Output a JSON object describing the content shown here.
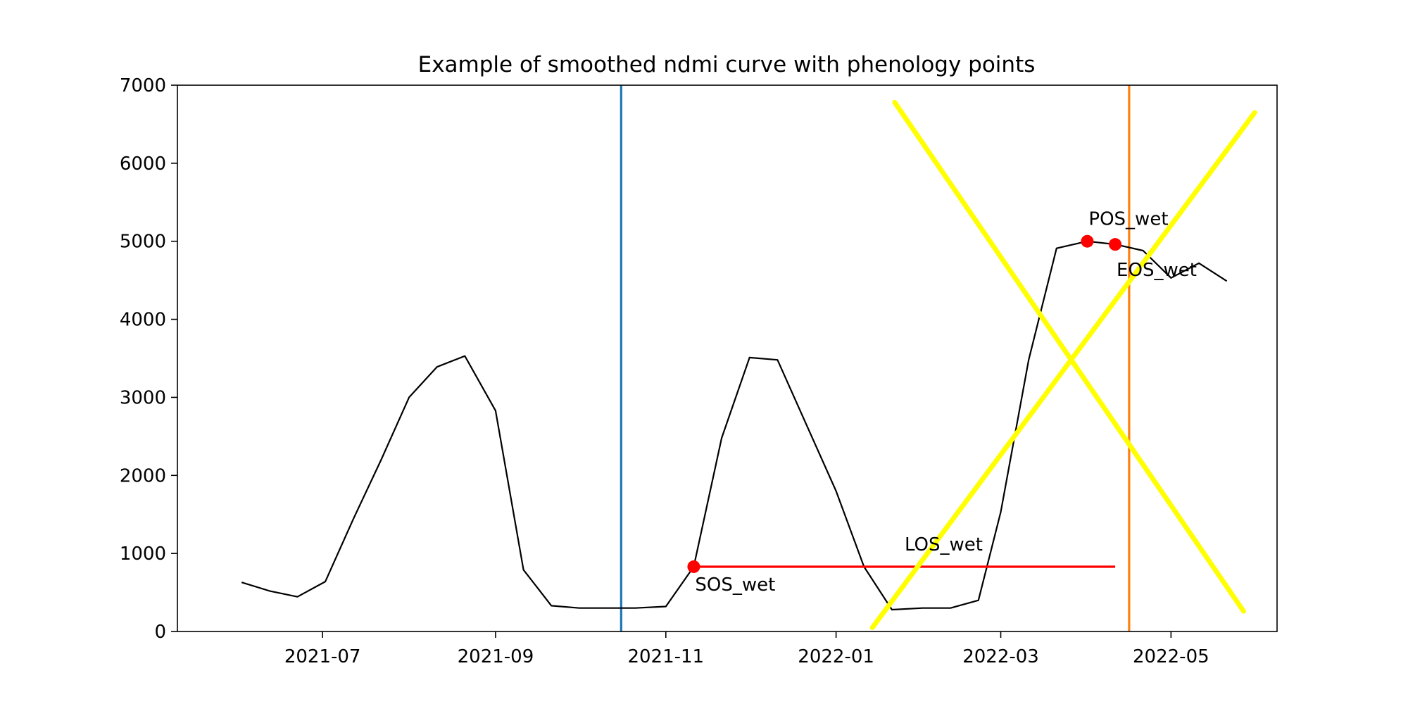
{
  "chart_data": {
    "type": "line",
    "title": "Example of smoothed ndmi curve with phenology points",
    "xlabel": "",
    "ylabel": "",
    "ylim": [
      0,
      7000
    ],
    "xlim": [
      "2021-05-10",
      "2022-06-08"
    ],
    "grid": false,
    "yticks": [
      0,
      1000,
      2000,
      3000,
      4000,
      5000,
      6000,
      7000
    ],
    "xticks": [
      {
        "date": "2021-07-01",
        "label": "2021-07"
      },
      {
        "date": "2021-09-01",
        "label": "2021-09"
      },
      {
        "date": "2021-11-01",
        "label": "2021-11"
      },
      {
        "date": "2022-01-01",
        "label": "2022-01"
      },
      {
        "date": "2022-03-01",
        "label": "2022-03"
      },
      {
        "date": "2022-05-01",
        "label": "2022-05"
      }
    ],
    "series": [
      {
        "color": "#000000",
        "points": [
          [
            "2021-06-02",
            630
          ],
          [
            "2021-06-12",
            520
          ],
          [
            "2021-06-22",
            445
          ],
          [
            "2021-07-02",
            640
          ],
          [
            "2021-07-12",
            1440
          ],
          [
            "2021-07-22",
            2200
          ],
          [
            "2021-08-01",
            3000
          ],
          [
            "2021-08-11",
            3390
          ],
          [
            "2021-08-21",
            3530
          ],
          [
            "2021-09-01",
            2830
          ],
          [
            "2021-09-11",
            790
          ],
          [
            "2021-09-21",
            330
          ],
          [
            "2021-10-01",
            300
          ],
          [
            "2021-10-11",
            300
          ],
          [
            "2021-10-21",
            300
          ],
          [
            "2021-11-01",
            320
          ],
          [
            "2021-11-11",
            830
          ],
          [
            "2021-11-21",
            2480
          ],
          [
            "2021-12-01",
            3510
          ],
          [
            "2021-12-11",
            3480
          ],
          [
            "2021-12-21",
            2680
          ],
          [
            "2022-01-01",
            1800
          ],
          [
            "2022-01-11",
            830
          ],
          [
            "2022-01-21",
            280
          ],
          [
            "2022-02-01",
            300
          ],
          [
            "2022-02-11",
            300
          ],
          [
            "2022-02-21",
            400
          ],
          [
            "2022-03-01",
            1530
          ],
          [
            "2022-03-11",
            3480
          ],
          [
            "2022-03-21",
            4910
          ],
          [
            "2022-04-01",
            5000
          ],
          [
            "2022-04-11",
            4960
          ],
          [
            "2022-04-21",
            4880
          ],
          [
            "2022-05-01",
            4530
          ],
          [
            "2022-05-11",
            4720
          ],
          [
            "2022-05-21",
            4490
          ]
        ]
      }
    ],
    "vlines": [
      {
        "date": "2021-10-16",
        "color": "#1f77b4"
      },
      {
        "date": "2022-04-16",
        "color": "#ff7f0e"
      }
    ],
    "phenology_points": [
      {
        "label": "SOS_wet",
        "date": "2021-11-11",
        "value": 830
      },
      {
        "label": "POS_wet",
        "date": "2022-04-01",
        "value": 5000
      },
      {
        "label": "EOS_wet",
        "date": "2022-04-11",
        "value": 4960
      }
    ],
    "los_segment": {
      "label": "LOS_wet",
      "start": "2021-11-11",
      "end": "2022-04-11",
      "value": 830,
      "color": "#ff0000"
    },
    "overlay_cross": {
      "color": "#ffff00",
      "lines": [
        [
          [
            "2022-01-14",
            50
          ],
          [
            "2022-05-31",
            6650
          ]
        ],
        [
          [
            "2022-01-22",
            6780
          ],
          [
            "2022-05-27",
            260
          ]
        ]
      ]
    }
  }
}
